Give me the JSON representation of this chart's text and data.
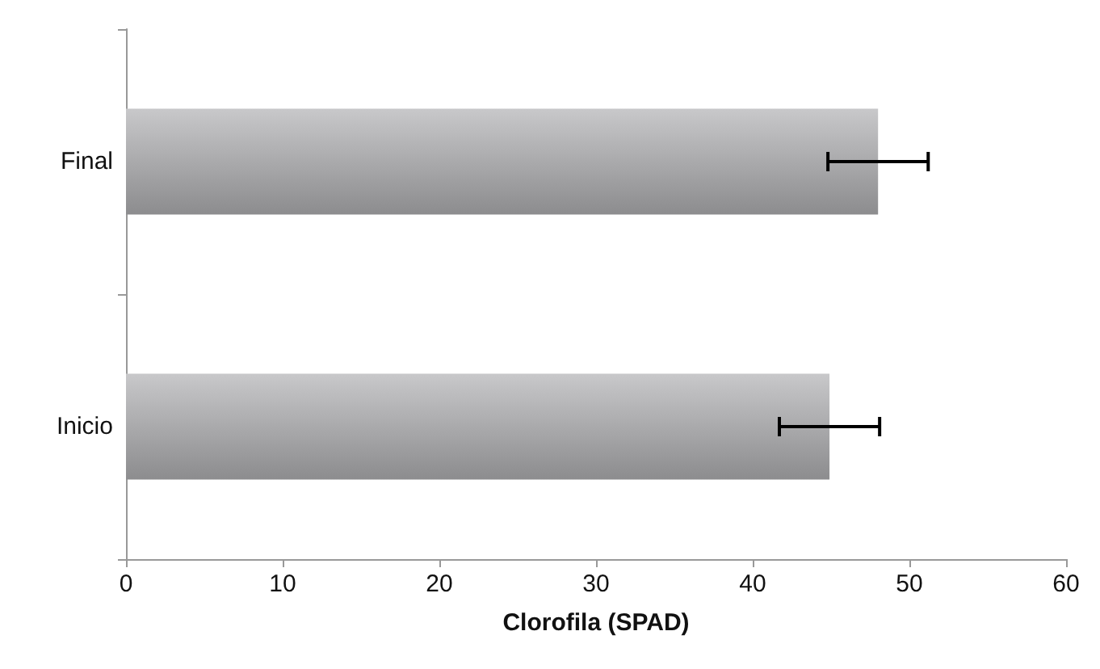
{
  "chart_data": {
    "type": "bar",
    "orientation": "horizontal",
    "xlabel": "Clorofila (SPAD)",
    "categories": [
      "Final",
      "Inicio"
    ],
    "values": [
      48.0,
      44.9
    ],
    "errors": [
      3.2,
      3.2
    ],
    "color": "#8c8c8e",
    "xlim": [
      0,
      60
    ],
    "xticks": [
      0,
      10,
      20,
      30,
      40,
      50,
      60
    ],
    "grid": false
  }
}
